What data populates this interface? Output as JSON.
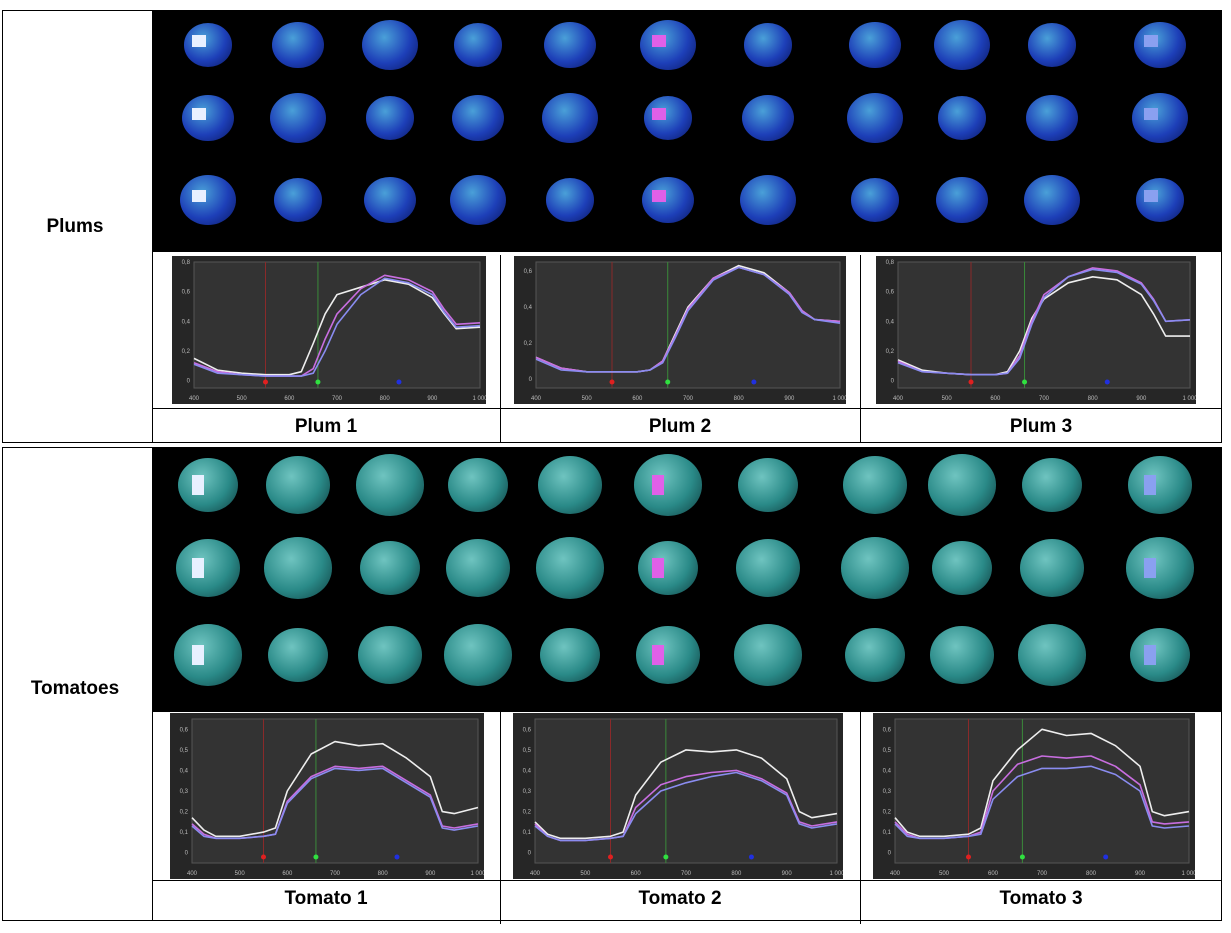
{
  "groups": [
    {
      "label": "Plums",
      "captions": [
        "Plum 1",
        "Plum 2",
        "Plum 3"
      ],
      "fruit_color": "#1d3fb8"
    },
    {
      "label": "Tomatoes",
      "captions": [
        "Tomato 1",
        "Tomato 2",
        "Tomato 3"
      ],
      "fruit_color": "#2a8a88"
    }
  ],
  "roi_colors": [
    "#e8f0ff",
    "#e060e8",
    "#8aa0f0"
  ],
  "chart_data": [
    {
      "type": "line",
      "title": "Plum 1",
      "xlim": [
        400,
        1000
      ],
      "ylim": [
        -0.05,
        0.8
      ],
      "xticks": [
        "400",
        "500",
        "600",
        "700",
        "800",
        "900",
        "1 000"
      ],
      "yticks": [
        "0",
        "0,2",
        "0,4",
        "0,6",
        "0,8"
      ],
      "markers": {
        "red": 550,
        "green": 660,
        "blue": 830
      },
      "x": [
        400,
        450,
        500,
        550,
        600,
        625,
        650,
        675,
        700,
        750,
        800,
        850,
        900,
        925,
        950,
        1000
      ],
      "series": [
        {
          "color": "#eeeeee",
          "values": [
            0.15,
            0.07,
            0.05,
            0.04,
            0.04,
            0.06,
            0.25,
            0.45,
            0.58,
            0.63,
            0.68,
            0.65,
            0.56,
            0.45,
            0.35,
            0.36
          ]
        },
        {
          "color": "#c86ee0",
          "values": [
            0.12,
            0.06,
            0.04,
            0.03,
            0.03,
            0.03,
            0.08,
            0.28,
            0.45,
            0.62,
            0.71,
            0.68,
            0.6,
            0.48,
            0.38,
            0.39
          ]
        },
        {
          "color": "#8a8cf0",
          "values": [
            0.11,
            0.05,
            0.04,
            0.03,
            0.03,
            0.03,
            0.05,
            0.2,
            0.38,
            0.58,
            0.69,
            0.66,
            0.58,
            0.46,
            0.36,
            0.37
          ]
        }
      ]
    },
    {
      "type": "line",
      "title": "Plum 2",
      "xlim": [
        400,
        1000
      ],
      "ylim": [
        -0.05,
        0.65
      ],
      "xticks": [
        "400",
        "500",
        "600",
        "700",
        "800",
        "900",
        "1 000"
      ],
      "yticks": [
        "0",
        "0,2",
        "0,4",
        "0,6"
      ],
      "markers": {
        "red": 550,
        "green": 660,
        "blue": 830
      },
      "x": [
        400,
        450,
        500,
        550,
        600,
        625,
        650,
        675,
        700,
        750,
        800,
        850,
        900,
        925,
        950,
        1000
      ],
      "series": [
        {
          "color": "#eeeeee",
          "values": [
            0.12,
            0.06,
            0.04,
            0.04,
            0.04,
            0.05,
            0.1,
            0.25,
            0.4,
            0.56,
            0.63,
            0.59,
            0.48,
            0.38,
            0.33,
            0.32
          ]
        },
        {
          "color": "#c86ee0",
          "values": [
            0.12,
            0.06,
            0.04,
            0.04,
            0.04,
            0.05,
            0.1,
            0.24,
            0.39,
            0.56,
            0.62,
            0.58,
            0.48,
            0.38,
            0.33,
            0.32
          ]
        },
        {
          "color": "#8a8cf0",
          "values": [
            0.11,
            0.05,
            0.04,
            0.04,
            0.04,
            0.05,
            0.09,
            0.23,
            0.38,
            0.55,
            0.62,
            0.58,
            0.47,
            0.37,
            0.33,
            0.31
          ]
        }
      ]
    },
    {
      "type": "line",
      "title": "Plum 3",
      "xlim": [
        400,
        1000
      ],
      "ylim": [
        -0.05,
        0.8
      ],
      "xticks": [
        "400",
        "500",
        "600",
        "700",
        "800",
        "900",
        "1 000"
      ],
      "yticks": [
        "0",
        "0,2",
        "0,4",
        "0,6",
        "0,8"
      ],
      "markers": {
        "red": 550,
        "green": 660,
        "blue": 830
      },
      "x": [
        400,
        450,
        500,
        550,
        600,
        625,
        650,
        675,
        700,
        750,
        800,
        850,
        900,
        925,
        950,
        1000
      ],
      "series": [
        {
          "color": "#eeeeee",
          "values": [
            0.14,
            0.07,
            0.05,
            0.04,
            0.04,
            0.06,
            0.2,
            0.42,
            0.55,
            0.66,
            0.7,
            0.68,
            0.58,
            0.45,
            0.3,
            0.3
          ]
        },
        {
          "color": "#c86ee0",
          "values": [
            0.13,
            0.06,
            0.05,
            0.04,
            0.04,
            0.05,
            0.17,
            0.4,
            0.58,
            0.7,
            0.76,
            0.74,
            0.66,
            0.55,
            0.4,
            0.41
          ]
        },
        {
          "color": "#8a8cf0",
          "values": [
            0.12,
            0.06,
            0.05,
            0.04,
            0.04,
            0.05,
            0.15,
            0.38,
            0.56,
            0.7,
            0.75,
            0.73,
            0.65,
            0.54,
            0.4,
            0.41
          ]
        }
      ]
    },
    {
      "type": "line",
      "title": "Tomato 1",
      "xlim": [
        400,
        1000
      ],
      "ylim": [
        -0.05,
        0.65
      ],
      "xticks": [
        "400",
        "500",
        "600",
        "700",
        "800",
        "900",
        "1 000"
      ],
      "yticks": [
        "0",
        "0,1",
        "0,2",
        "0,3",
        "0,4",
        "0,5",
        "0,6"
      ],
      "markers": {
        "red": 550,
        "green": 660,
        "blue": 830
      },
      "x": [
        400,
        425,
        450,
        500,
        550,
        575,
        600,
        650,
        700,
        750,
        800,
        850,
        900,
        925,
        950,
        1000
      ],
      "series": [
        {
          "color": "#eeeeee",
          "values": [
            0.17,
            0.11,
            0.08,
            0.08,
            0.1,
            0.12,
            0.3,
            0.48,
            0.54,
            0.52,
            0.53,
            0.46,
            0.37,
            0.2,
            0.19,
            0.22
          ]
        },
        {
          "color": "#c86ee0",
          "values": [
            0.14,
            0.09,
            0.07,
            0.07,
            0.08,
            0.09,
            0.25,
            0.37,
            0.42,
            0.41,
            0.42,
            0.35,
            0.28,
            0.13,
            0.12,
            0.14
          ]
        },
        {
          "color": "#8a8cf0",
          "values": [
            0.13,
            0.08,
            0.07,
            0.07,
            0.08,
            0.09,
            0.24,
            0.36,
            0.41,
            0.4,
            0.41,
            0.34,
            0.27,
            0.12,
            0.11,
            0.13
          ]
        }
      ]
    },
    {
      "type": "line",
      "title": "Tomato 2",
      "xlim": [
        400,
        1000
      ],
      "ylim": [
        -0.05,
        0.65
      ],
      "xticks": [
        "400",
        "500",
        "600",
        "700",
        "800",
        "900",
        "1 000"
      ],
      "yticks": [
        "0",
        "0,1",
        "0,2",
        "0,3",
        "0,4",
        "0,5",
        "0,6"
      ],
      "markers": {
        "red": 550,
        "green": 660,
        "blue": 830
      },
      "x": [
        400,
        425,
        450,
        500,
        550,
        575,
        600,
        650,
        700,
        750,
        800,
        850,
        900,
        925,
        950,
        1000
      ],
      "series": [
        {
          "color": "#eeeeee",
          "values": [
            0.15,
            0.09,
            0.07,
            0.07,
            0.08,
            0.1,
            0.28,
            0.44,
            0.5,
            0.49,
            0.5,
            0.46,
            0.36,
            0.2,
            0.17,
            0.19
          ]
        },
        {
          "color": "#c86ee0",
          "values": [
            0.14,
            0.08,
            0.06,
            0.06,
            0.07,
            0.08,
            0.22,
            0.33,
            0.37,
            0.39,
            0.4,
            0.36,
            0.29,
            0.15,
            0.13,
            0.15
          ]
        },
        {
          "color": "#8a8cf0",
          "values": [
            0.13,
            0.08,
            0.06,
            0.06,
            0.07,
            0.08,
            0.19,
            0.3,
            0.34,
            0.37,
            0.39,
            0.35,
            0.28,
            0.14,
            0.12,
            0.14
          ]
        }
      ]
    },
    {
      "type": "line",
      "title": "Tomato 3",
      "xlim": [
        400,
        1000
      ],
      "ylim": [
        -0.05,
        0.65
      ],
      "xticks": [
        "400",
        "500",
        "600",
        "700",
        "800",
        "900",
        "1 000"
      ],
      "yticks": [
        "0",
        "0,1",
        "0,2",
        "0,3",
        "0,4",
        "0,5",
        "0,6"
      ],
      "markers": {
        "red": 550,
        "green": 660,
        "blue": 830
      },
      "x": [
        400,
        425,
        450,
        500,
        550,
        575,
        600,
        650,
        700,
        750,
        800,
        850,
        900,
        925,
        950,
        1000
      ],
      "series": [
        {
          "color": "#eeeeee",
          "values": [
            0.17,
            0.1,
            0.08,
            0.08,
            0.09,
            0.12,
            0.35,
            0.5,
            0.6,
            0.57,
            0.58,
            0.52,
            0.42,
            0.2,
            0.18,
            0.2
          ]
        },
        {
          "color": "#c86ee0",
          "values": [
            0.15,
            0.09,
            0.07,
            0.07,
            0.08,
            0.1,
            0.3,
            0.43,
            0.47,
            0.46,
            0.47,
            0.42,
            0.33,
            0.15,
            0.14,
            0.15
          ]
        },
        {
          "color": "#8a8cf0",
          "values": [
            0.14,
            0.08,
            0.07,
            0.07,
            0.08,
            0.09,
            0.26,
            0.37,
            0.41,
            0.41,
            0.42,
            0.38,
            0.3,
            0.13,
            0.12,
            0.13
          ]
        }
      ]
    }
  ]
}
